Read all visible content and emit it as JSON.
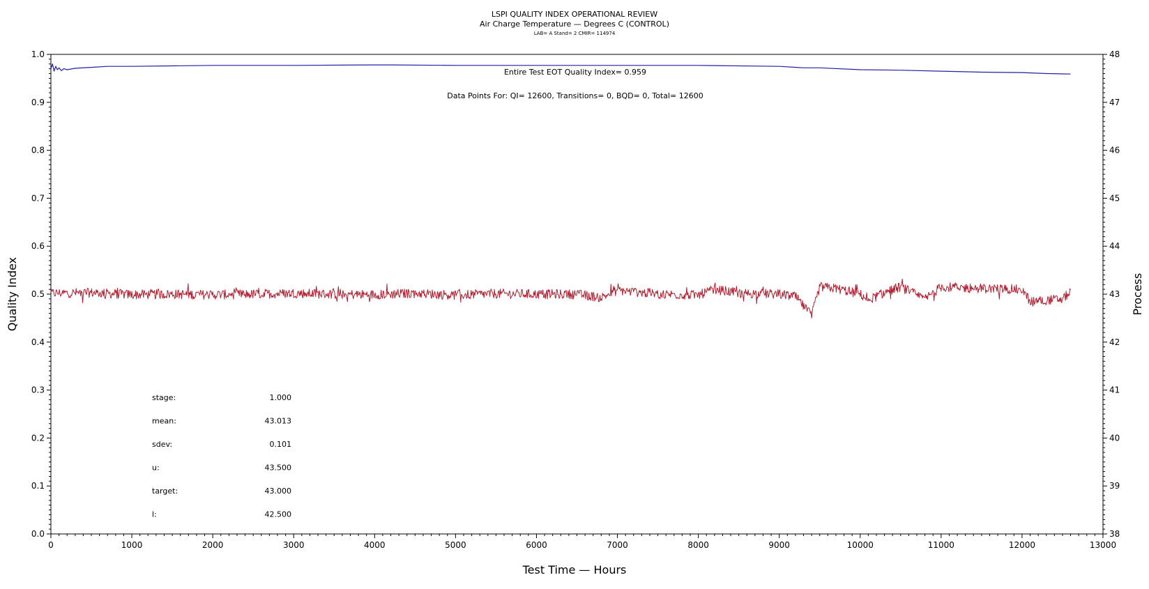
{
  "chart_data": {
    "type": "line",
    "title": "LSPI QUALITY INDEX OPERATIONAL REVIEW",
    "subtitle": "Air Charge Temperature — Degrees C (CONTROL)",
    "subsubtitle": "LAB= A Stand= 2 CMIR= 114974",
    "xlabel": "Test Time — Hours",
    "ylabel": "Quality Index",
    "y2label": "Process",
    "xlim": [
      0,
      13000
    ],
    "ylim": [
      0.0,
      1.0
    ],
    "y2lim": [
      38,
      48
    ],
    "x_ticks": [
      "0",
      "1000",
      "2000",
      "3000",
      "4000",
      "5000",
      "6000",
      "7000",
      "8000",
      "9000",
      "10000",
      "11000",
      "12000",
      "13000"
    ],
    "y_ticks": [
      "0.0",
      "0.1",
      "0.2",
      "0.3",
      "0.4",
      "0.5",
      "0.6",
      "0.7",
      "0.8",
      "0.9",
      "1.0"
    ],
    "y2_ticks": [
      "38",
      "39",
      "40",
      "41",
      "42",
      "43",
      "44",
      "45",
      "46",
      "47",
      "48"
    ],
    "annotations": [
      "Entire Test EOT Quality Index=   0.959",
      "Data Points For: QI= 12600, Transitions=     0, BQD=     0, Total= 12600"
    ],
    "stats": [
      {
        "label": "stage:",
        "value": "1.000"
      },
      {
        "label": "mean:",
        "value": "43.013"
      },
      {
        "label": "sdev:",
        "value": "0.101"
      },
      {
        "label": "u:",
        "value": "43.500"
      },
      {
        "label": "target:",
        "value": "43.000"
      },
      {
        "label": "l:",
        "value": "42.500"
      }
    ],
    "series": [
      {
        "name": "Quality Index",
        "axis": "left",
        "color": "#1f1fa8",
        "x": [
          0,
          20,
          40,
          60,
          80,
          100,
          130,
          160,
          200,
          300,
          500,
          700,
          1000,
          1500,
          2000,
          3000,
          4000,
          4200,
          5000,
          6000,
          7000,
          8000,
          9000,
          9300,
          9500,
          10000,
          10500,
          11000,
          11500,
          12000,
          12300,
          12600
        ],
        "y": [
          0.97,
          0.98,
          0.965,
          0.975,
          0.968,
          0.972,
          0.966,
          0.97,
          0.968,
          0.971,
          0.973,
          0.975,
          0.975,
          0.976,
          0.977,
          0.977,
          0.978,
          0.978,
          0.977,
          0.977,
          0.977,
          0.977,
          0.975,
          0.972,
          0.972,
          0.968,
          0.967,
          0.965,
          0.963,
          0.962,
          0.96,
          0.959
        ]
      },
      {
        "name": "Process",
        "axis": "right",
        "color": "#b01c2e",
        "x": [
          0,
          500,
          1000,
          1500,
          2000,
          2500,
          3000,
          3500,
          4000,
          4500,
          5000,
          5500,
          6000,
          6500,
          6800,
          7000,
          7500,
          8000,
          8200,
          8500,
          9000,
          9200,
          9400,
          9500,
          9700,
          10000,
          10100,
          10400,
          10500,
          10800,
          11000,
          11500,
          12000,
          12100,
          12500,
          12600
        ],
        "y": [
          43.02,
          43.03,
          42.99,
          43.0,
          42.99,
          43.0,
          43.02,
          43.0,
          42.99,
          43.02,
          42.98,
          43.01,
          43.0,
          43.0,
          42.93,
          43.08,
          43.0,
          42.98,
          43.1,
          43.02,
          43.0,
          42.95,
          42.55,
          43.15,
          43.12,
          43.0,
          42.88,
          43.1,
          43.15,
          42.9,
          43.15,
          43.12,
          43.1,
          42.85,
          42.9,
          43.05
        ]
      }
    ],
    "upper_limit": 43.5,
    "target": 43.0,
    "lower_limit": 42.5
  }
}
